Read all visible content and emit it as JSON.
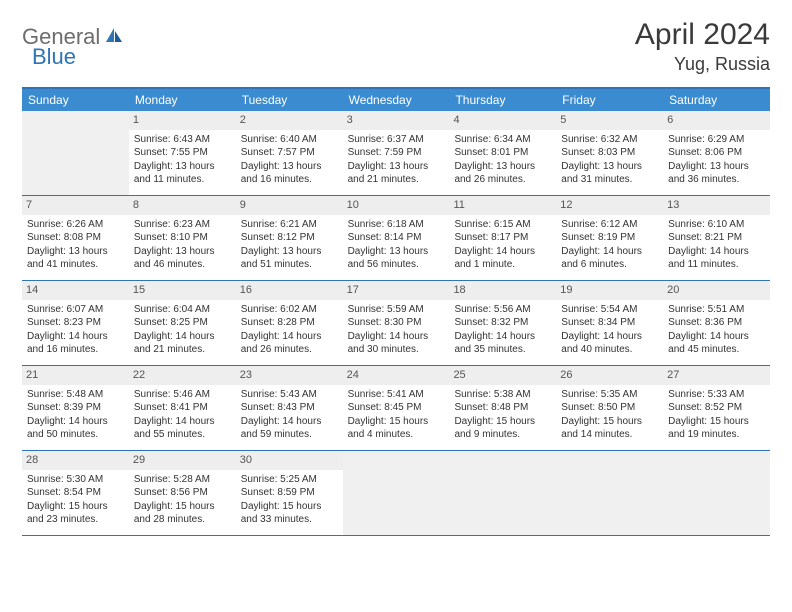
{
  "brand": {
    "general": "General",
    "blue": "Blue"
  },
  "title": "April 2024",
  "location": "Yug, Russia",
  "colors": {
    "header_bg": "#3b8bd0",
    "border": "#2f75b5",
    "daynum_bg": "#eeeeee",
    "empty_bg": "#f0f0f0",
    "text": "#333333",
    "logo_gray": "#6d6d6d",
    "logo_blue": "#2f75b5"
  },
  "dayNames": [
    "Sunday",
    "Monday",
    "Tuesday",
    "Wednesday",
    "Thursday",
    "Friday",
    "Saturday"
  ],
  "weeks": [
    [
      null,
      {
        "n": "1",
        "sr": "Sunrise: 6:43 AM",
        "ss": "Sunset: 7:55 PM",
        "d1": "Daylight: 13 hours",
        "d2": "and 11 minutes."
      },
      {
        "n": "2",
        "sr": "Sunrise: 6:40 AM",
        "ss": "Sunset: 7:57 PM",
        "d1": "Daylight: 13 hours",
        "d2": "and 16 minutes."
      },
      {
        "n": "3",
        "sr": "Sunrise: 6:37 AM",
        "ss": "Sunset: 7:59 PM",
        "d1": "Daylight: 13 hours",
        "d2": "and 21 minutes."
      },
      {
        "n": "4",
        "sr": "Sunrise: 6:34 AM",
        "ss": "Sunset: 8:01 PM",
        "d1": "Daylight: 13 hours",
        "d2": "and 26 minutes."
      },
      {
        "n": "5",
        "sr": "Sunrise: 6:32 AM",
        "ss": "Sunset: 8:03 PM",
        "d1": "Daylight: 13 hours",
        "d2": "and 31 minutes."
      },
      {
        "n": "6",
        "sr": "Sunrise: 6:29 AM",
        "ss": "Sunset: 8:06 PM",
        "d1": "Daylight: 13 hours",
        "d2": "and 36 minutes."
      }
    ],
    [
      {
        "n": "7",
        "sr": "Sunrise: 6:26 AM",
        "ss": "Sunset: 8:08 PM",
        "d1": "Daylight: 13 hours",
        "d2": "and 41 minutes."
      },
      {
        "n": "8",
        "sr": "Sunrise: 6:23 AM",
        "ss": "Sunset: 8:10 PM",
        "d1": "Daylight: 13 hours",
        "d2": "and 46 minutes."
      },
      {
        "n": "9",
        "sr": "Sunrise: 6:21 AM",
        "ss": "Sunset: 8:12 PM",
        "d1": "Daylight: 13 hours",
        "d2": "and 51 minutes."
      },
      {
        "n": "10",
        "sr": "Sunrise: 6:18 AM",
        "ss": "Sunset: 8:14 PM",
        "d1": "Daylight: 13 hours",
        "d2": "and 56 minutes."
      },
      {
        "n": "11",
        "sr": "Sunrise: 6:15 AM",
        "ss": "Sunset: 8:17 PM",
        "d1": "Daylight: 14 hours",
        "d2": "and 1 minute."
      },
      {
        "n": "12",
        "sr": "Sunrise: 6:12 AM",
        "ss": "Sunset: 8:19 PM",
        "d1": "Daylight: 14 hours",
        "d2": "and 6 minutes."
      },
      {
        "n": "13",
        "sr": "Sunrise: 6:10 AM",
        "ss": "Sunset: 8:21 PM",
        "d1": "Daylight: 14 hours",
        "d2": "and 11 minutes."
      }
    ],
    [
      {
        "n": "14",
        "sr": "Sunrise: 6:07 AM",
        "ss": "Sunset: 8:23 PM",
        "d1": "Daylight: 14 hours",
        "d2": "and 16 minutes."
      },
      {
        "n": "15",
        "sr": "Sunrise: 6:04 AM",
        "ss": "Sunset: 8:25 PM",
        "d1": "Daylight: 14 hours",
        "d2": "and 21 minutes."
      },
      {
        "n": "16",
        "sr": "Sunrise: 6:02 AM",
        "ss": "Sunset: 8:28 PM",
        "d1": "Daylight: 14 hours",
        "d2": "and 26 minutes."
      },
      {
        "n": "17",
        "sr": "Sunrise: 5:59 AM",
        "ss": "Sunset: 8:30 PM",
        "d1": "Daylight: 14 hours",
        "d2": "and 30 minutes."
      },
      {
        "n": "18",
        "sr": "Sunrise: 5:56 AM",
        "ss": "Sunset: 8:32 PM",
        "d1": "Daylight: 14 hours",
        "d2": "and 35 minutes."
      },
      {
        "n": "19",
        "sr": "Sunrise: 5:54 AM",
        "ss": "Sunset: 8:34 PM",
        "d1": "Daylight: 14 hours",
        "d2": "and 40 minutes."
      },
      {
        "n": "20",
        "sr": "Sunrise: 5:51 AM",
        "ss": "Sunset: 8:36 PM",
        "d1": "Daylight: 14 hours",
        "d2": "and 45 minutes."
      }
    ],
    [
      {
        "n": "21",
        "sr": "Sunrise: 5:48 AM",
        "ss": "Sunset: 8:39 PM",
        "d1": "Daylight: 14 hours",
        "d2": "and 50 minutes."
      },
      {
        "n": "22",
        "sr": "Sunrise: 5:46 AM",
        "ss": "Sunset: 8:41 PM",
        "d1": "Daylight: 14 hours",
        "d2": "and 55 minutes."
      },
      {
        "n": "23",
        "sr": "Sunrise: 5:43 AM",
        "ss": "Sunset: 8:43 PM",
        "d1": "Daylight: 14 hours",
        "d2": "and 59 minutes."
      },
      {
        "n": "24",
        "sr": "Sunrise: 5:41 AM",
        "ss": "Sunset: 8:45 PM",
        "d1": "Daylight: 15 hours",
        "d2": "and 4 minutes."
      },
      {
        "n": "25",
        "sr": "Sunrise: 5:38 AM",
        "ss": "Sunset: 8:48 PM",
        "d1": "Daylight: 15 hours",
        "d2": "and 9 minutes."
      },
      {
        "n": "26",
        "sr": "Sunrise: 5:35 AM",
        "ss": "Sunset: 8:50 PM",
        "d1": "Daylight: 15 hours",
        "d2": "and 14 minutes."
      },
      {
        "n": "27",
        "sr": "Sunrise: 5:33 AM",
        "ss": "Sunset: 8:52 PM",
        "d1": "Daylight: 15 hours",
        "d2": "and 19 minutes."
      }
    ],
    [
      {
        "n": "28",
        "sr": "Sunrise: 5:30 AM",
        "ss": "Sunset: 8:54 PM",
        "d1": "Daylight: 15 hours",
        "d2": "and 23 minutes."
      },
      {
        "n": "29",
        "sr": "Sunrise: 5:28 AM",
        "ss": "Sunset: 8:56 PM",
        "d1": "Daylight: 15 hours",
        "d2": "and 28 minutes."
      },
      {
        "n": "30",
        "sr": "Sunrise: 5:25 AM",
        "ss": "Sunset: 8:59 PM",
        "d1": "Daylight: 15 hours",
        "d2": "and 33 minutes."
      },
      null,
      null,
      null,
      null
    ]
  ]
}
